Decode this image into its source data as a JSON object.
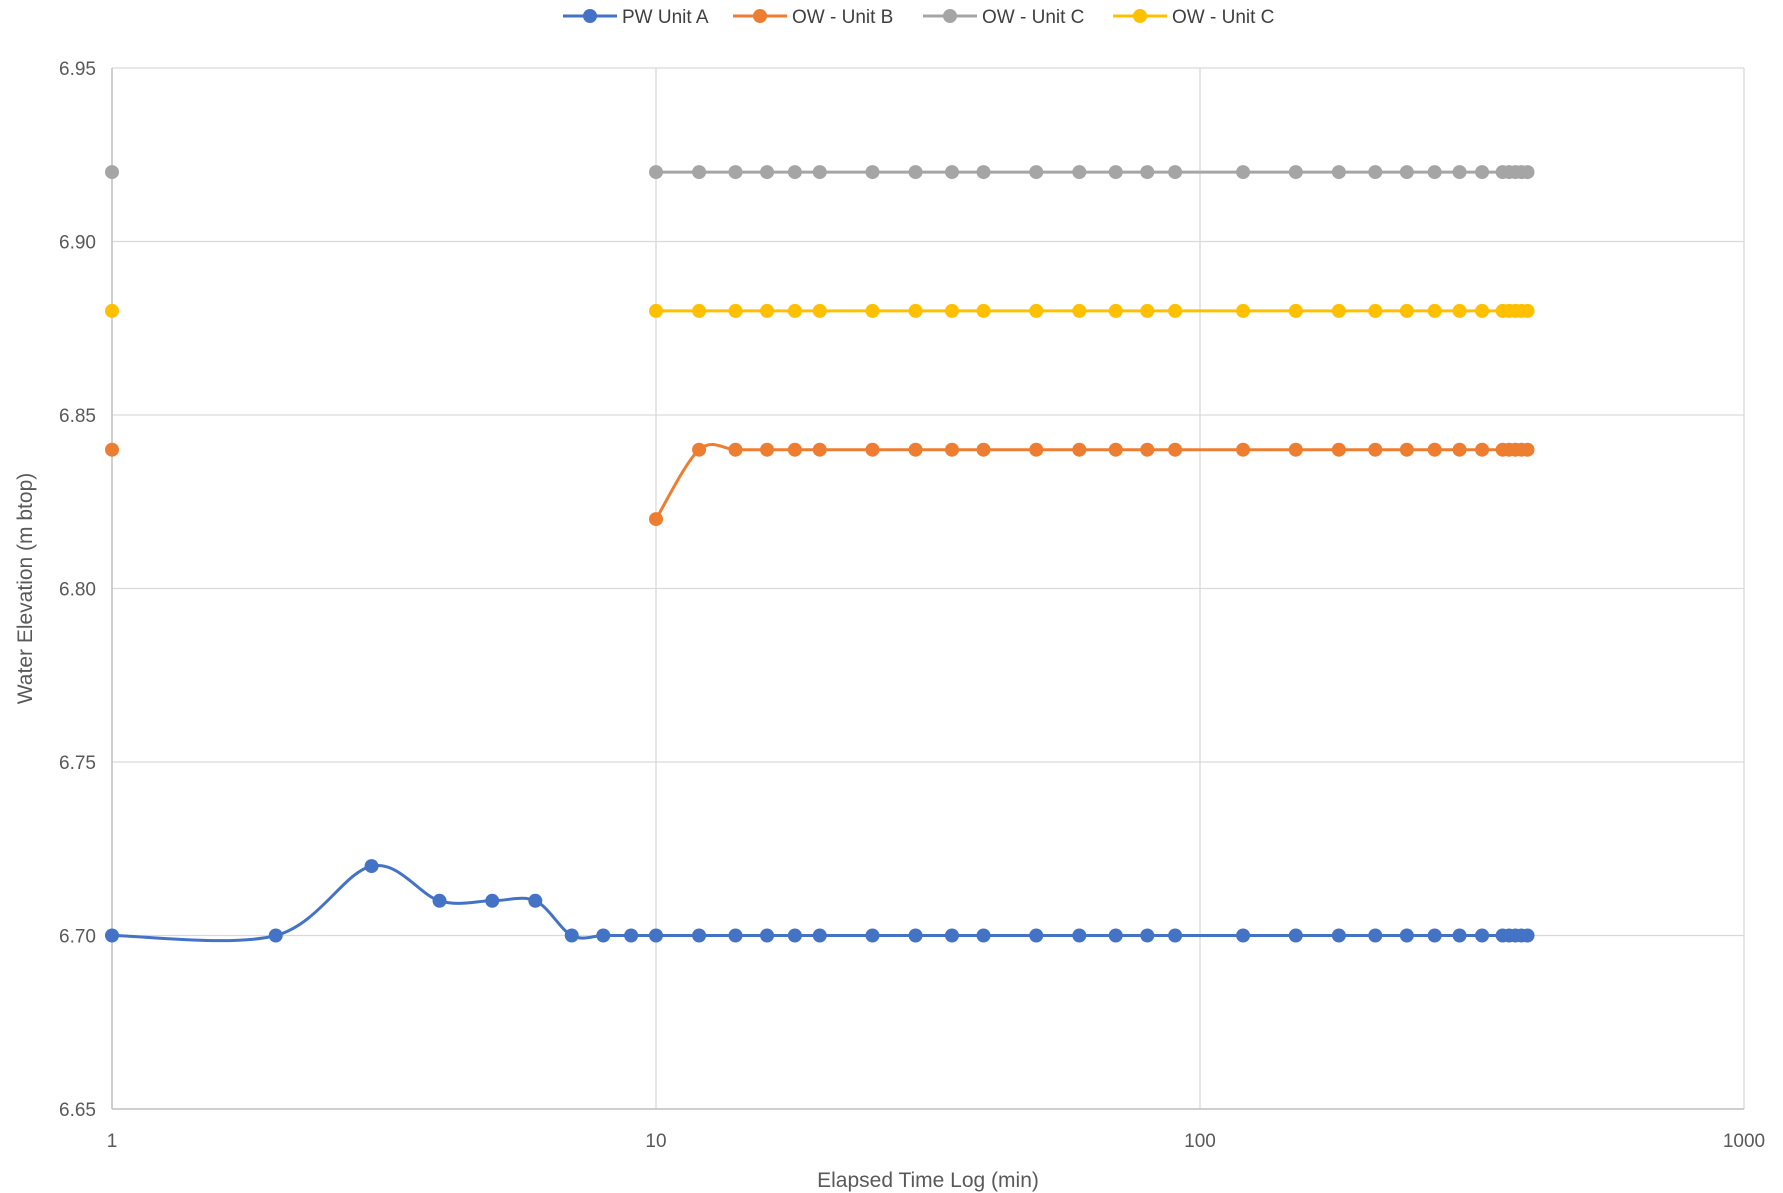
{
  "chart_data": {
    "type": "line",
    "title": "",
    "xlabel": "Elapsed Time Log (min)",
    "ylabel": "Water Elevation (m btop)",
    "x_scale": "log",
    "xlim": [
      1,
      1000
    ],
    "ylim": [
      6.65,
      6.95
    ],
    "x_ticks": [
      1,
      10,
      100,
      1000
    ],
    "x_tick_labels": [
      "1",
      "10",
      "100",
      "1000"
    ],
    "y_ticks": [
      6.65,
      6.7,
      6.75,
      6.8,
      6.85,
      6.9,
      6.95
    ],
    "y_tick_labels": [
      "6.65",
      "6.70",
      "6.75",
      "6.80",
      "6.85",
      "6.90",
      "6.95"
    ],
    "grid": true,
    "legend_position": "top",
    "series": [
      {
        "name": "PW Unit A",
        "color": "#4472C4",
        "x": [
          1,
          2,
          3,
          4,
          5,
          6,
          7,
          8,
          9,
          10,
          12,
          14,
          16,
          18,
          20,
          25,
          30,
          35,
          40,
          50,
          60,
          70,
          80,
          90,
          120,
          150,
          180,
          210,
          240,
          270,
          300,
          330,
          360,
          370,
          380,
          390,
          400
        ],
        "values": [
          6.7,
          6.7,
          6.72,
          6.71,
          6.71,
          6.71,
          6.7,
          6.7,
          6.7,
          6.7,
          6.7,
          6.7,
          6.7,
          6.7,
          6.7,
          6.7,
          6.7,
          6.7,
          6.7,
          6.7,
          6.7,
          6.7,
          6.7,
          6.7,
          6.7,
          6.7,
          6.7,
          6.7,
          6.7,
          6.7,
          6.7,
          6.7,
          6.7,
          6.7,
          6.7,
          6.7,
          6.7
        ]
      },
      {
        "name": "OW - Unit B",
        "color": "#ED7D31",
        "x": [
          1,
          10,
          12,
          14,
          16,
          18,
          20,
          25,
          30,
          35,
          40,
          50,
          60,
          70,
          80,
          90,
          120,
          150,
          180,
          210,
          240,
          270,
          300,
          330,
          360,
          370,
          380,
          390,
          400
        ],
        "values": [
          6.84,
          6.82,
          6.84,
          6.84,
          6.84,
          6.84,
          6.84,
          6.84,
          6.84,
          6.84,
          6.84,
          6.84,
          6.84,
          6.84,
          6.84,
          6.84,
          6.84,
          6.84,
          6.84,
          6.84,
          6.84,
          6.84,
          6.84,
          6.84,
          6.84,
          6.84,
          6.84,
          6.84,
          6.84
        ],
        "break_after_index": 0
      },
      {
        "name": "OW - Unit C",
        "color": "#A5A5A5",
        "x": [
          1,
          10,
          12,
          14,
          16,
          18,
          20,
          25,
          30,
          35,
          40,
          50,
          60,
          70,
          80,
          90,
          120,
          150,
          180,
          210,
          240,
          270,
          300,
          330,
          360,
          370,
          380,
          390,
          400
        ],
        "values": [
          6.92,
          6.92,
          6.92,
          6.92,
          6.92,
          6.92,
          6.92,
          6.92,
          6.92,
          6.92,
          6.92,
          6.92,
          6.92,
          6.92,
          6.92,
          6.92,
          6.92,
          6.92,
          6.92,
          6.92,
          6.92,
          6.92,
          6.92,
          6.92,
          6.92,
          6.92,
          6.92,
          6.92,
          6.92
        ],
        "break_after_index": 0
      },
      {
        "name": "OW - Unit C",
        "color": "#FFC000",
        "x": [
          1,
          10,
          12,
          14,
          16,
          18,
          20,
          25,
          30,
          35,
          40,
          50,
          60,
          70,
          80,
          90,
          120,
          150,
          180,
          210,
          240,
          270,
          300,
          330,
          360,
          370,
          380,
          390,
          400
        ],
        "values": [
          6.88,
          6.88,
          6.88,
          6.88,
          6.88,
          6.88,
          6.88,
          6.88,
          6.88,
          6.88,
          6.88,
          6.88,
          6.88,
          6.88,
          6.88,
          6.88,
          6.88,
          6.88,
          6.88,
          6.88,
          6.88,
          6.88,
          6.88,
          6.88,
          6.88,
          6.88,
          6.88,
          6.88,
          6.88
        ],
        "break_after_index": 0
      }
    ]
  }
}
